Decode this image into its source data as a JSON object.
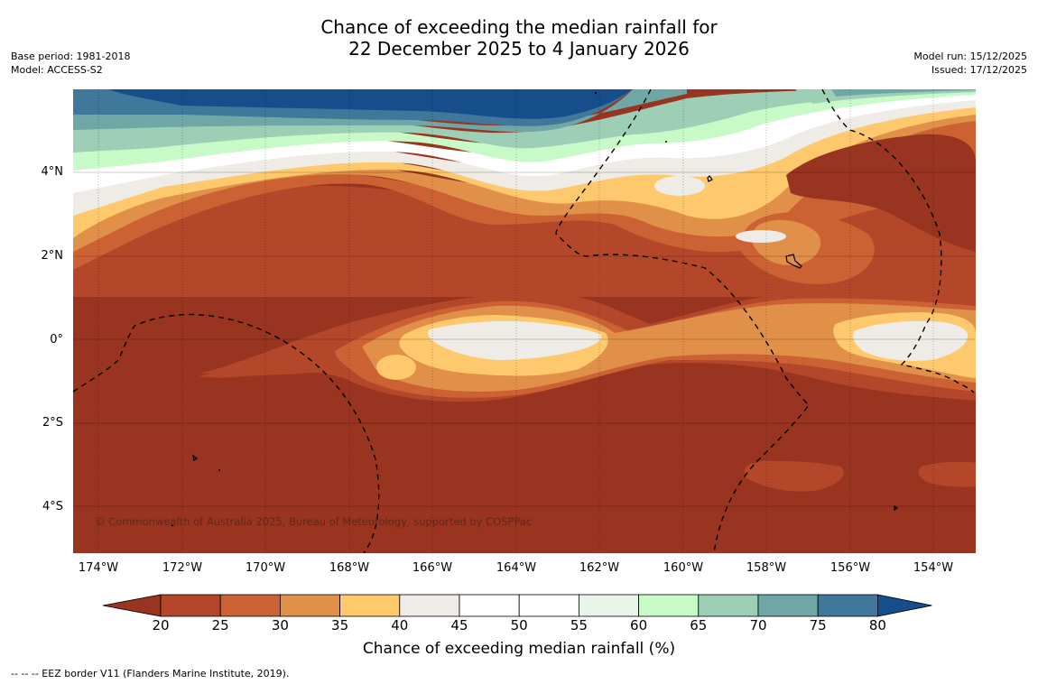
{
  "title_line1": "Chance of exceeding the median rainfall for",
  "title_line2": "22 December 2025 to 4 January 2026",
  "meta_left": {
    "base_period": "Base period: 1981-2018",
    "model": "Model: ACCESS-S2"
  },
  "meta_right": {
    "model_run": "Model run: 15/12/2025",
    "issued": "Issued: 17/12/2025"
  },
  "copyright": "© Commonwealth of Australia 2025, Bureau of Meteorology, supported by COSPPac",
  "y_ticks": [
    "4°N",
    "2°N",
    "0°",
    "2°S",
    "4°S"
  ],
  "x_ticks": [
    "174°W",
    "172°W",
    "170°W",
    "168°W",
    "166°W",
    "164°W",
    "162°W",
    "160°W",
    "158°W",
    "156°W",
    "154°W"
  ],
  "colorbar": {
    "title": "Chance of exceeding median rainfall (%)",
    "ticks": [
      "20",
      "25",
      "30",
      "35",
      "40",
      "45",
      "50",
      "55",
      "60",
      "65",
      "70",
      "75",
      "80"
    ],
    "colors": [
      "#993420",
      "#b4472a",
      "#cc6233",
      "#e09048",
      "#fdc96c",
      "#efebe6",
      "#ffffff",
      "#ffffff",
      "#e8f5e8",
      "#c8fac8",
      "#9ccfb6",
      "#6fa7a7",
      "#3f789a",
      "#154e8a"
    ]
  },
  "legend_note": "--  --  -- EEZ border V11 (Flanders Marine Institute, 2019)."
}
